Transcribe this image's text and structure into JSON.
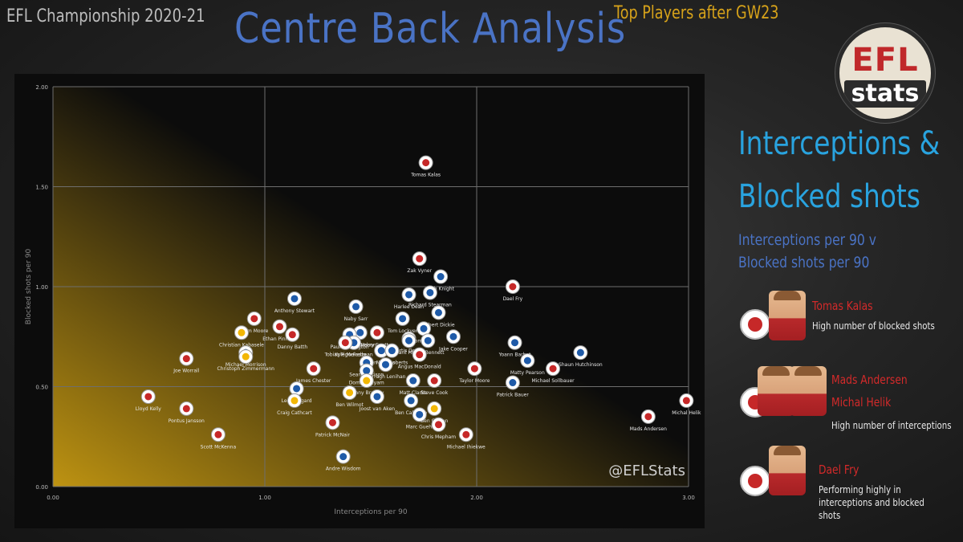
{
  "header": {
    "league": "EFL Championship 2020-21",
    "title": "Centre Back Analysis",
    "subtitle": "Top Players after GW23"
  },
  "logo": {
    "line1": "EFL",
    "line2": "stats"
  },
  "side": {
    "heading_line1": "Interceptions &",
    "heading_line2": "Blocked shots",
    "sub_line1": "Interceptions per 90 v",
    "sub_line2": "Blocked shots per 90",
    "cards": [
      {
        "names": [
          "Tomas Kalas"
        ],
        "desc": [
          "High number of blocked shots"
        ]
      },
      {
        "names": [
          "Mads Andersen",
          "Michal Helik"
        ],
        "desc": [
          "High number of interceptions"
        ]
      },
      {
        "names": [
          "Dael Fry"
        ],
        "desc": [
          "Performing highly in",
          "interceptions and blocked",
          "shots"
        ]
      }
    ]
  },
  "chart_data": {
    "type": "scatter",
    "xlabel": "Interceptions per 90",
    "ylabel": "Blocked shots per 90",
    "xlim": [
      0,
      3
    ],
    "ylim": [
      0,
      2
    ],
    "xticks": [
      "0.00",
      "1.00",
      "2.00",
      "3.00"
    ],
    "yticks": [
      "0.00",
      "0.50",
      "1.00",
      "1.50",
      "2.00"
    ],
    "grid": true,
    "watermark": "@EFLStats",
    "colors": {
      "grid": "#6e6e6e",
      "gradient": "#c79a12",
      "label": "#e8e8e8",
      "badge_red": "#c62828",
      "badge_blue": "#1e5aa8",
      "badge_yellow": "#f2b705"
    },
    "points": [
      {
        "name": "Tomas Kalas",
        "x": 1.76,
        "y": 1.62,
        "color": "#c62828"
      },
      {
        "name": "Zak Vyner",
        "x": 1.73,
        "y": 1.14,
        "color": "#c62828"
      },
      {
        "name": "Josh Knight",
        "x": 1.83,
        "y": 1.05,
        "color": "#1e5aa8"
      },
      {
        "name": "Dael Fry",
        "x": 2.17,
        "y": 1.0,
        "color": "#c62828"
      },
      {
        "name": "Harlee Dean",
        "x": 1.68,
        "y": 0.96,
        "color": "#1e5aa8"
      },
      {
        "name": "Richard Stearman",
        "x": 1.78,
        "y": 0.97,
        "color": "#1e5aa8"
      },
      {
        "name": "Anthony Stewart",
        "x": 1.14,
        "y": 0.94,
        "color": "#1e5aa8"
      },
      {
        "name": "Naby Sarr",
        "x": 1.43,
        "y": 0.9,
        "color": "#1e5aa8"
      },
      {
        "name": "Liam Moore",
        "x": 0.95,
        "y": 0.84,
        "color": "#c62828"
      },
      {
        "name": "Tom Lockyer",
        "x": 1.65,
        "y": 0.84,
        "color": "#1e5aa8"
      },
      {
        "name": "Robert Dickie",
        "x": 1.82,
        "y": 0.87,
        "color": "#1e5aa8"
      },
      {
        "name": "Tom Lees",
        "x": 1.75,
        "y": 0.79,
        "color": "#1e5aa8"
      },
      {
        "name": "Ethan Pinnock",
        "x": 1.07,
        "y": 0.8,
        "color": "#c62828"
      },
      {
        "name": "Curtis Nelson",
        "x": 1.45,
        "y": 0.77,
        "color": "#1e5aa8"
      },
      {
        "name": "Harry Souttar",
        "x": 1.53,
        "y": 0.77,
        "color": "#c62828"
      },
      {
        "name": "Christian Kabasele",
        "x": 0.89,
        "y": 0.77,
        "color": "#f2b705"
      },
      {
        "name": "Danny Batth",
        "x": 1.13,
        "y": 0.76,
        "color": "#c62828"
      },
      {
        "name": "Paul Huntington",
        "x": 1.4,
        "y": 0.76,
        "color": "#1e5aa8"
      },
      {
        "name": "Kyle McFadzean",
        "x": 1.42,
        "y": 0.72,
        "color": "#1e5aa8"
      },
      {
        "name": "Tobias Figueiredo",
        "x": 1.38,
        "y": 0.72,
        "color": "#c62828"
      },
      {
        "name": "Curtis Davies",
        "x": 1.68,
        "y": 0.74,
        "color": "#1e5aa8"
      },
      {
        "name": "Grant Hanley",
        "x": 1.68,
        "y": 0.73,
        "color": "#1e5aa8"
      },
      {
        "name": "Ryan Bennett",
        "x": 1.77,
        "y": 0.73,
        "color": "#1e5aa8"
      },
      {
        "name": "Jake Cooper",
        "x": 1.89,
        "y": 0.75,
        "color": "#1e5aa8"
      },
      {
        "name": "Yoann Barbet",
        "x": 2.18,
        "y": 0.72,
        "color": "#1e5aa8"
      },
      {
        "name": "Shaun Hutchinson",
        "x": 2.49,
        "y": 0.67,
        "color": "#1e5aa8"
      },
      {
        "name": "Michael Morrison",
        "x": 0.91,
        "y": 0.67,
        "color": "#1e5aa8"
      },
      {
        "name": "Christoph Zimmermann",
        "x": 0.91,
        "y": 0.65,
        "color": "#f2b705"
      },
      {
        "name": "Ben Davies",
        "x": 1.55,
        "y": 0.68,
        "color": "#1e5aa8"
      },
      {
        "name": "Marc Roberts",
        "x": 1.6,
        "y": 0.68,
        "color": "#1e5aa8"
      },
      {
        "name": "Angus MacDonald",
        "x": 1.73,
        "y": 0.66,
        "color": "#c62828"
      },
      {
        "name": "Matty Pearson",
        "x": 2.24,
        "y": 0.63,
        "color": "#1e5aa8"
      },
      {
        "name": "Michael Sollbauer",
        "x": 2.36,
        "y": 0.59,
        "color": "#c62828"
      },
      {
        "name": "Joe Worrall",
        "x": 0.63,
        "y": 0.64,
        "color": "#c62828"
      },
      {
        "name": "Sean Morrison",
        "x": 1.48,
        "y": 0.62,
        "color": "#1e5aa8"
      },
      {
        "name": "Darragh Lenihan",
        "x": 1.57,
        "y": 0.61,
        "color": "#1e5aa8"
      },
      {
        "name": "Taylor Moore",
        "x": 1.99,
        "y": 0.59,
        "color": "#c62828"
      },
      {
        "name": "James Chester",
        "x": 1.23,
        "y": 0.59,
        "color": "#c62828"
      },
      {
        "name": "Dominic Hyam",
        "x": 1.48,
        "y": 0.58,
        "color": "#1e5aa8"
      },
      {
        "name": "Sonny Bradley",
        "x": 1.48,
        "y": 0.53,
        "color": "#f2b705"
      },
      {
        "name": "Matt Clarke",
        "x": 1.7,
        "y": 0.53,
        "color": "#1e5aa8"
      },
      {
        "name": "Steve Cook",
        "x": 1.8,
        "y": 0.53,
        "color": "#c62828"
      },
      {
        "name": "Patrick Bauer",
        "x": 2.17,
        "y": 0.52,
        "color": "#1e5aa8"
      },
      {
        "name": "Leo Ostigard",
        "x": 1.15,
        "y": 0.49,
        "color": "#1e5aa8"
      },
      {
        "name": "Ben Wilmot",
        "x": 1.4,
        "y": 0.47,
        "color": "#f2b705"
      },
      {
        "name": "Joost van Aken",
        "x": 1.53,
        "y": 0.45,
        "color": "#1e5aa8"
      },
      {
        "name": "Ben Cabango",
        "x": 1.69,
        "y": 0.43,
        "color": "#1e5aa8"
      },
      {
        "name": "Ben Gibson",
        "x": 1.8,
        "y": 0.39,
        "color": "#f2b705"
      },
      {
        "name": "Marc Guehi",
        "x": 1.73,
        "y": 0.36,
        "color": "#1e5aa8"
      },
      {
        "name": "Craig Cathcart",
        "x": 1.14,
        "y": 0.43,
        "color": "#f2b705"
      },
      {
        "name": "Lloyd Kelly",
        "x": 0.45,
        "y": 0.45,
        "color": "#c62828"
      },
      {
        "name": "Pontus Jansson",
        "x": 0.63,
        "y": 0.39,
        "color": "#c62828"
      },
      {
        "name": "Michal Helik",
        "x": 2.99,
        "y": 0.43,
        "color": "#c62828"
      },
      {
        "name": "Mads Andersen",
        "x": 2.81,
        "y": 0.35,
        "color": "#c62828"
      },
      {
        "name": "Patrick McNair",
        "x": 1.32,
        "y": 0.32,
        "color": "#c62828"
      },
      {
        "name": "Chris Mepham",
        "x": 1.82,
        "y": 0.31,
        "color": "#c62828"
      },
      {
        "name": "Michael Ihiekwe",
        "x": 1.95,
        "y": 0.26,
        "color": "#c62828"
      },
      {
        "name": "Scott McKenna",
        "x": 0.78,
        "y": 0.26,
        "color": "#c62828"
      },
      {
        "name": "Andre Wisdom",
        "x": 1.37,
        "y": 0.15,
        "color": "#1e5aa8"
      }
    ]
  }
}
